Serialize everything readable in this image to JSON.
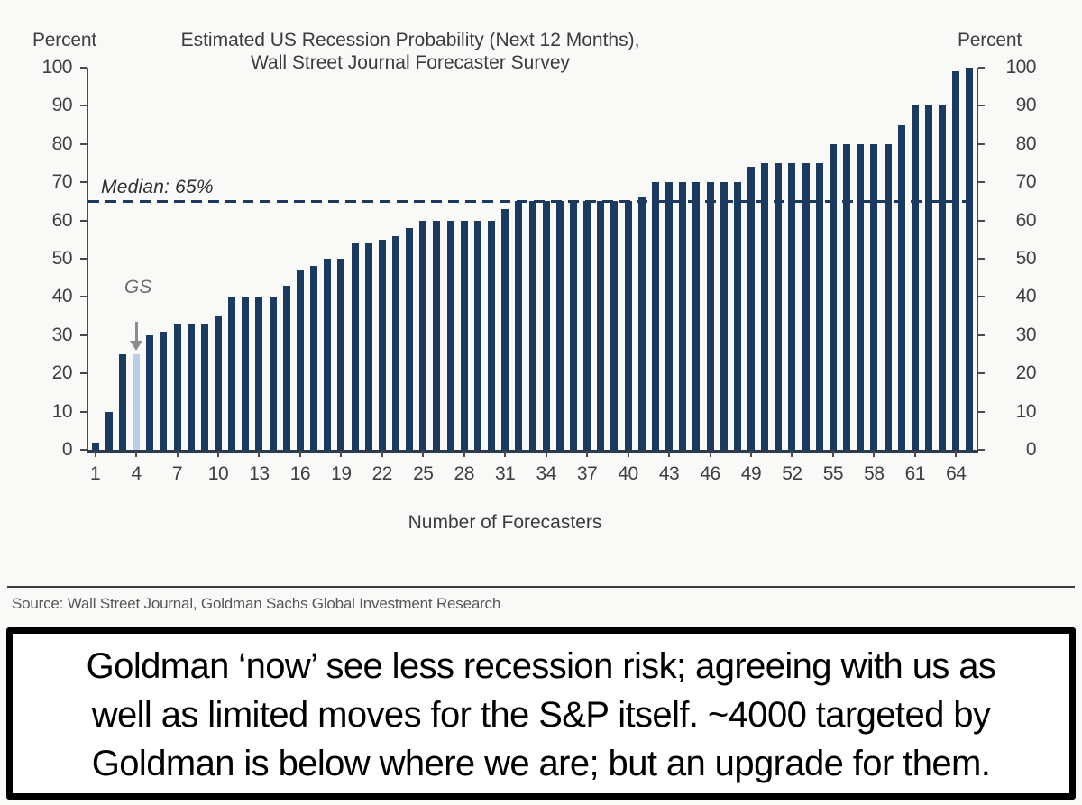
{
  "chart": {
    "title_lines": [
      "Estimated US Recession Probability (Next 12 Months),",
      "Wall Street Journal Forecaster Survey"
    ],
    "unit_left": "Percent",
    "unit_right": "Percent",
    "x_axis_title": "Number of Forecasters",
    "median_annotation": "Median: 65%",
    "gs_annotation": "GS",
    "colors": {
      "bar": "#1b3a5e",
      "highlight_bar": "#b9cfe7",
      "median_line": "#1c3a5e",
      "axis": "#4a4a4a",
      "annotation_gray": "#8c8c8c"
    }
  },
  "chart_data": {
    "type": "bar",
    "title": "Estimated US Recession Probability (Next 12 Months), Wall Street Journal Forecaster Survey",
    "xlabel": "Number of Forecasters",
    "ylabel": "Percent",
    "ylim": [
      0,
      100
    ],
    "grid": false,
    "legend": false,
    "num_bars": 65,
    "values": [
      2,
      10,
      25,
      25,
      30,
      31,
      33,
      33,
      33,
      35,
      40,
      40,
      40,
      40,
      43,
      47,
      48,
      50,
      50,
      54,
      54,
      55,
      56,
      58,
      60,
      60,
      60,
      60,
      60,
      60,
      63,
      65,
      65,
      65,
      65,
      65,
      65,
      65,
      65,
      65,
      66,
      70,
      70,
      70,
      70,
      70,
      70,
      70,
      74,
      75,
      75,
      75,
      75,
      75,
      80,
      80,
      80,
      80,
      80,
      85,
      90,
      90,
      90,
      99,
      100
    ],
    "highlight_bar": {
      "position": 4,
      "label": "GS",
      "value": 25,
      "color": "#b9cfe7"
    },
    "median": {
      "value": 65,
      "label": "Median: 65%"
    },
    "x_tick_labels": [
      1,
      4,
      7,
      10,
      13,
      16,
      19,
      22,
      25,
      28,
      31,
      34,
      37,
      40,
      43,
      46,
      49,
      52,
      55,
      58,
      61,
      64
    ],
    "y_ticks": [
      0,
      10,
      20,
      30,
      40,
      50,
      60,
      70,
      80,
      90,
      100
    ]
  },
  "source": "Source: Wall Street Journal, Goldman Sachs Global Investment Research",
  "caption_lines": [
    "Goldman ‘now’ see less recession risk; agreeing with us as",
    "well as limited moves for the S&P itself. ~4000 targeted by",
    "Goldman is below where we are; but an upgrade for them."
  ]
}
